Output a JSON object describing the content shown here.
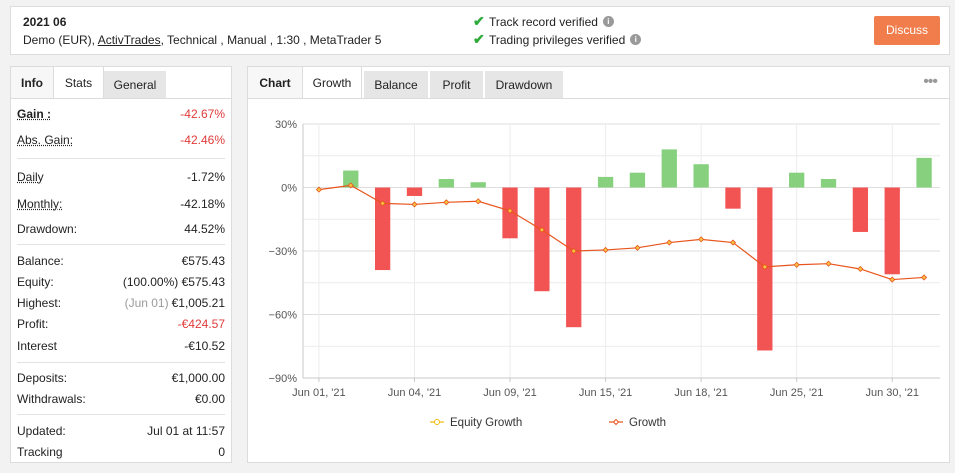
{
  "header": {
    "title": "2021 06",
    "account_type": "Demo (EUR),",
    "broker": "ActivTrades",
    "details": ", Technical , Manual , 1:30 , MetaTrader 5",
    "verif1": "Track record verified",
    "verif2": "Trading privileges verified",
    "discuss_label": "Discuss"
  },
  "left_tabs": [
    "Info",
    "Stats",
    "General"
  ],
  "stats": {
    "gain_label": "Gain :",
    "gain_value": "-42.67%",
    "abs_gain_label": "Abs. Gain:",
    "abs_gain_value": "-42.46%",
    "daily_label": "Daily",
    "daily_value": "-1.72%",
    "monthly_label": "Monthly:",
    "monthly_value": "-42.18%",
    "drawdown_label": "Drawdown:",
    "drawdown_value": "44.52%",
    "balance_label": "Balance:",
    "balance_value": "€575.43",
    "equity_label": "Equity:",
    "equity_pct": "(100.00%)",
    "equity_value": "€575.43",
    "highest_label": "Highest:",
    "highest_date": "(Jun 01)",
    "highest_value": "€1,005.21",
    "profit_label": "Profit:",
    "profit_value": "-€424.57",
    "interest_label": "Interest",
    "interest_value": "-€10.52",
    "deposits_label": "Deposits:",
    "deposits_value": "€1,000.00",
    "withdrawals_label": "Withdrawals:",
    "withdrawals_value": "€0.00",
    "updated_label": "Updated:",
    "updated_value": "Jul 01 at 11:57",
    "tracking_label": "Tracking",
    "tracking_value": "0"
  },
  "right_tabs": [
    "Chart",
    "Growth",
    "Balance",
    "Profit",
    "Drawdown"
  ],
  "colors": {
    "positive_bar": "#86d07e",
    "negative_bar": "#f25454",
    "growth_line": "#e8541c",
    "equity_line": "#f2b90f",
    "negative_text": "#e03b3b",
    "accent": "#f07d4b"
  },
  "chart_data": {
    "type": "bar",
    "ylim": [
      -90,
      30
    ],
    "yticks": [
      30,
      0,
      -30,
      -60,
      -90
    ],
    "ytick_labels": [
      "30%",
      "0%",
      "−30%",
      "−60%",
      "−90%"
    ],
    "xtick_labels": [
      "Jun 01, '21",
      "Jun 04, '21",
      "Jun 09, '21",
      "Jun 15, '21",
      "Jun 18, '21",
      "Jun 25, '21",
      "Jun 30, '21"
    ],
    "xtick_index": [
      0,
      3,
      6,
      9,
      12,
      15,
      18
    ],
    "n_points": 20,
    "legend": [
      "Equity Growth",
      "Growth"
    ],
    "legend_position": "bottom",
    "bars": [
      0,
      8,
      -39,
      -4,
      4,
      2.5,
      -24,
      -49,
      -66,
      5,
      7,
      18,
      11,
      -10,
      -77,
      7,
      4,
      -21,
      -41,
      14
    ],
    "growth": [
      -1,
      1,
      -7.5,
      -8,
      -7,
      -6.5,
      -11,
      -20,
      -30,
      -29.5,
      -28.5,
      -26,
      -24.5,
      -26,
      -37.5,
      -36.5,
      -36,
      -38.5,
      -43.5,
      -42.5
    ]
  }
}
